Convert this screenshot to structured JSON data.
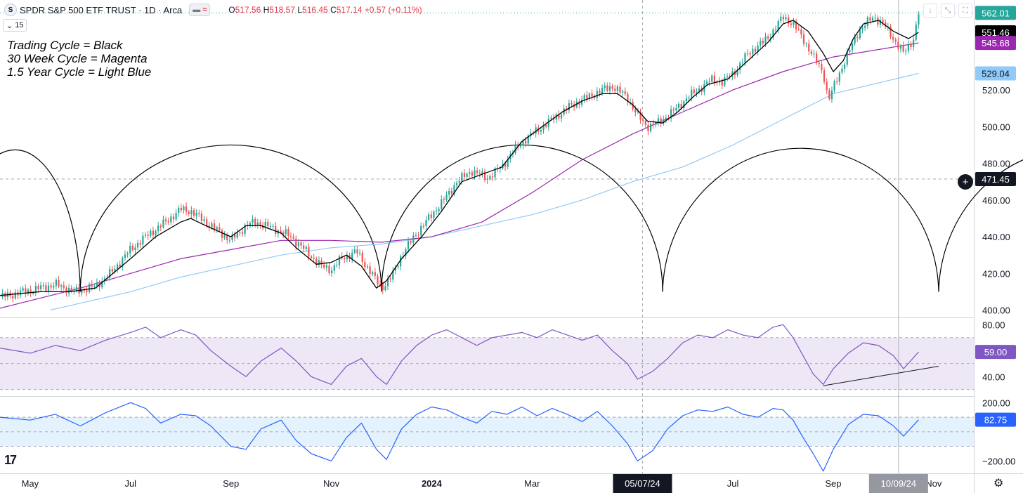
{
  "header": {
    "symbol_icon": "S",
    "title": "SPDR S&P 500 ETF TRUST · 1D · Arca",
    "pill_icons": [
      "bars-icon",
      "approx-icon"
    ],
    "ohlc": {
      "o_label": "O",
      "o": "517.56",
      "h_label": "H",
      "h": "518.57",
      "l_label": "L",
      "l": "516.45",
      "c_label": "C",
      "c": "517.14",
      "change": "+0.57 (+0.11%)"
    },
    "interval_value": "15"
  },
  "toolbar": [
    "arrow-down-icon",
    "collapse-icon",
    "expand-icon"
  ],
  "notes": [
    "Trading Cycle = Black",
    "30 Week Cycle = Magenta",
    "1.5 Year Cycle = Light Blue"
  ],
  "price_tags": [
    {
      "value": "562.01",
      "bg": "#26a69a",
      "fg": "#ffffff",
      "y": 562.01
    },
    {
      "value": "551.46",
      "bg": "#000000",
      "fg": "#ffffff",
      "y": 551.46
    },
    {
      "value": "545.68",
      "bg": "#9c27b0",
      "fg": "#ffffff",
      "y": 545.68
    },
    {
      "value": "529.04",
      "bg": "#90caf9",
      "fg": "#131722",
      "y": 529.04
    },
    {
      "value": "471.45",
      "bg": "#131722",
      "fg": "#ffffff",
      "y": 471.45
    }
  ],
  "rsi_tag": {
    "value": "59.00",
    "bg": "#7e57c2",
    "fg": "#ffffff"
  },
  "cci_tag": {
    "value": "82.75",
    "bg": "#2962ff",
    "fg": "#ffffff"
  },
  "time_tags": [
    {
      "label": "05/07/24",
      "bg": "#131722",
      "month": 12.2
    },
    {
      "label": "10/09/24",
      "bg": "#9598a1",
      "month": 17.3
    }
  ],
  "colors": {
    "up": "#26a69a",
    "down": "#ef5350",
    "trading_cycle": "#000000",
    "cycle_30w": "#9c27b0",
    "cycle_15y": "#90caf9",
    "rsi": "#7e57c2",
    "rsi_band": "#ede7f6",
    "cci": "#2962ff",
    "cci_band": "#e3f2fd"
  },
  "chart_data": [
    {
      "type": "candlestick",
      "title": "SPDR S&P 500 ETF TRUST · 1D · Arca",
      "yticks": [
        400,
        420,
        440,
        460,
        480,
        500,
        520
      ],
      "ytick_labels": [
        "400.00",
        "420.00",
        "440.00",
        "460.00",
        "480.00",
        "500.00",
        "520.00"
      ],
      "ylim": [
        396,
        566
      ],
      "x_ticks": [
        {
          "label": "May",
          "month": 0
        },
        {
          "label": "Jul",
          "month": 2
        },
        {
          "label": "Sep",
          "month": 4
        },
        {
          "label": "Nov",
          "month": 6
        },
        {
          "label": "2024",
          "month": 8
        },
        {
          "label": "Mar",
          "month": 10
        },
        {
          "label": "Jul",
          "month": 14
        },
        {
          "label": "Sep",
          "month": 16
        },
        {
          "label": "Nov",
          "month": 18
        }
      ],
      "xlim": [
        -0.6,
        18.8
      ],
      "close_path": [
        [
          -0.6,
          407
        ],
        [
          0.2,
          412
        ],
        [
          0.5,
          414
        ],
        [
          0.9,
          410
        ],
        [
          1.3,
          413
        ],
        [
          1.6,
          420
        ],
        [
          2.0,
          433
        ],
        [
          2.3,
          440
        ],
        [
          2.7,
          448
        ],
        [
          3.0,
          455
        ],
        [
          3.2,
          454
        ],
        [
          3.5,
          448
        ],
        [
          3.8,
          442
        ],
        [
          4.0,
          438
        ],
        [
          4.3,
          446
        ],
        [
          4.5,
          448
        ],
        [
          4.9,
          444
        ],
        [
          5.2,
          440
        ],
        [
          5.5,
          432
        ],
        [
          5.8,
          424
        ],
        [
          6.0,
          422
        ],
        [
          6.2,
          428
        ],
        [
          6.5,
          432
        ],
        [
          6.8,
          420
        ],
        [
          7.0,
          412
        ],
        [
          7.2,
          418
        ],
        [
          7.4,
          430
        ],
        [
          7.7,
          442
        ],
        [
          8.0,
          452
        ],
        [
          8.3,
          462
        ],
        [
          8.5,
          470
        ],
        [
          8.8,
          476
        ],
        [
          9.1,
          472
        ],
        [
          9.4,
          478
        ],
        [
          9.6,
          486
        ],
        [
          9.9,
          494
        ],
        [
          10.2,
          500
        ],
        [
          10.5,
          506
        ],
        [
          10.8,
          512
        ],
        [
          11.1,
          516
        ],
        [
          11.4,
          520
        ],
        [
          11.6,
          522
        ],
        [
          11.9,
          516
        ],
        [
          12.1,
          506
        ],
        [
          12.3,
          500
        ],
        [
          12.5,
          502
        ],
        [
          12.8,
          508
        ],
        [
          13.1,
          516
        ],
        [
          13.4,
          522
        ],
        [
          13.6,
          526
        ],
        [
          13.8,
          524
        ],
        [
          14.1,
          532
        ],
        [
          14.3,
          540
        ],
        [
          14.6,
          546
        ],
        [
          14.8,
          552
        ],
        [
          15.0,
          560
        ],
        [
          15.2,
          556
        ],
        [
          15.4,
          548
        ],
        [
          15.6,
          538
        ],
        [
          15.8,
          530
        ],
        [
          15.9,
          514
        ],
        [
          16.1,
          528
        ],
        [
          16.3,
          540
        ],
        [
          16.5,
          552
        ],
        [
          16.8,
          560
        ],
        [
          17.0,
          556
        ],
        [
          17.2,
          548
        ],
        [
          17.4,
          540
        ],
        [
          17.6,
          548
        ],
        [
          17.7,
          562
        ]
      ],
      "trading_cycle_line": [
        [
          -0.6,
          408
        ],
        [
          0.2,
          410
        ],
        [
          0.8,
          410
        ],
        [
          1.3,
          412
        ],
        [
          2.0,
          428
        ],
        [
          2.5,
          440
        ],
        [
          3.0,
          448
        ],
        [
          3.2,
          450
        ],
        [
          3.5,
          446
        ],
        [
          4.0,
          440
        ],
        [
          4.3,
          446
        ],
        [
          4.6,
          446
        ],
        [
          5.0,
          442
        ],
        [
          5.3,
          434
        ],
        [
          5.7,
          425
        ],
        [
          6.0,
          426
        ],
        [
          6.3,
          430
        ],
        [
          6.6,
          424
        ],
        [
          6.9,
          412
        ],
        [
          7.1,
          416
        ],
        [
          7.4,
          428
        ],
        [
          7.8,
          440
        ],
        [
          8.2,
          454
        ],
        [
          8.6,
          470
        ],
        [
          9.0,
          474
        ],
        [
          9.4,
          478
        ],
        [
          9.8,
          492
        ],
        [
          10.2,
          500
        ],
        [
          10.6,
          508
        ],
        [
          11.0,
          514
        ],
        [
          11.4,
          518
        ],
        [
          11.7,
          518
        ],
        [
          12.0,
          512
        ],
        [
          12.3,
          503
        ],
        [
          12.6,
          502
        ],
        [
          12.9,
          508
        ],
        [
          13.2,
          516
        ],
        [
          13.5,
          523
        ],
        [
          13.9,
          526
        ],
        [
          14.3,
          536
        ],
        [
          14.7,
          546
        ],
        [
          15.0,
          556
        ],
        [
          15.2,
          558
        ],
        [
          15.5,
          552
        ],
        [
          15.8,
          540
        ],
        [
          16.0,
          530
        ],
        [
          16.2,
          536
        ],
        [
          16.4,
          548
        ],
        [
          16.6,
          556
        ],
        [
          16.9,
          558
        ],
        [
          17.2,
          552
        ],
        [
          17.5,
          548
        ],
        [
          17.7,
          551.46
        ]
      ],
      "cycle_30w_line": [
        [
          -0.6,
          401
        ],
        [
          1,
          412
        ],
        [
          2,
          420
        ],
        [
          3,
          428
        ],
        [
          4,
          433
        ],
        [
          5,
          438
        ],
        [
          6,
          438
        ],
        [
          7,
          437
        ],
        [
          8,
          440
        ],
        [
          9,
          448
        ],
        [
          10,
          464
        ],
        [
          11,
          482
        ],
        [
          12,
          496
        ],
        [
          13,
          508
        ],
        [
          14,
          520
        ],
        [
          15,
          530
        ],
        [
          16,
          538
        ],
        [
          17.7,
          545.68
        ]
      ],
      "cycle_15y_line": [
        [
          0.4,
          400
        ],
        [
          2,
          410
        ],
        [
          3,
          418
        ],
        [
          4,
          424
        ],
        [
          5,
          430
        ],
        [
          6,
          434
        ],
        [
          7,
          436
        ],
        [
          8,
          440
        ],
        [
          9,
          446
        ],
        [
          10,
          452
        ],
        [
          11,
          460
        ],
        [
          12,
          470
        ],
        [
          13,
          478
        ],
        [
          14,
          490
        ],
        [
          15,
          504
        ],
        [
          16,
          518
        ],
        [
          17.7,
          529.04
        ]
      ],
      "cycle_arcs": [
        {
          "start_month": -1.6,
          "end_month": 1.0,
          "peak": 490,
          "trough": 410
        },
        {
          "start_month": 1.0,
          "end_month": 7.0,
          "peak": 490,
          "trough": 410
        },
        {
          "start_month": 7.0,
          "end_month": 12.6,
          "peak": 490,
          "trough": 410
        },
        {
          "start_month": 12.6,
          "end_month": 18.1,
          "peak": 490,
          "trough": 410
        },
        {
          "start_month": 18.1,
          "end_month": 23.6,
          "peak": 490,
          "trough": 410
        }
      ],
      "crosshair_price": 471.45,
      "crosshair_month": 12.2,
      "cursor_month": 17.3
    },
    {
      "type": "line",
      "title": "RSI",
      "yticks": [
        40,
        80
      ],
      "ytick_labels": [
        "40.00",
        "80.00"
      ],
      "ylim": [
        25,
        85
      ],
      "band": [
        30,
        70
      ],
      "midline": 50,
      "last_value": 59.0,
      "series_path": [
        [
          -0.6,
          62
        ],
        [
          0,
          58
        ],
        [
          0.5,
          64
        ],
        [
          1.0,
          60
        ],
        [
          1.5,
          68
        ],
        [
          2.0,
          74
        ],
        [
          2.3,
          78
        ],
        [
          2.6,
          70
        ],
        [
          3.0,
          76
        ],
        [
          3.3,
          72
        ],
        [
          3.6,
          60
        ],
        [
          4.0,
          48
        ],
        [
          4.3,
          40
        ],
        [
          4.6,
          52
        ],
        [
          5.0,
          62
        ],
        [
          5.3,
          52
        ],
        [
          5.6,
          40
        ],
        [
          6.0,
          34
        ],
        [
          6.3,
          48
        ],
        [
          6.6,
          54
        ],
        [
          6.9,
          40
        ],
        [
          7.1,
          34
        ],
        [
          7.4,
          52
        ],
        [
          7.7,
          64
        ],
        [
          8.0,
          72
        ],
        [
          8.3,
          76
        ],
        [
          8.6,
          70
        ],
        [
          8.9,
          64
        ],
        [
          9.2,
          70
        ],
        [
          9.5,
          72
        ],
        [
          9.8,
          74
        ],
        [
          10.1,
          70
        ],
        [
          10.4,
          76
        ],
        [
          10.7,
          72
        ],
        [
          11.0,
          68
        ],
        [
          11.3,
          72
        ],
        [
          11.6,
          60
        ],
        [
          11.9,
          50
        ],
        [
          12.1,
          38
        ],
        [
          12.4,
          44
        ],
        [
          12.7,
          54
        ],
        [
          13.0,
          66
        ],
        [
          13.3,
          72
        ],
        [
          13.6,
          70
        ],
        [
          13.9,
          76
        ],
        [
          14.2,
          72
        ],
        [
          14.5,
          70
        ],
        [
          14.8,
          78
        ],
        [
          15.0,
          80
        ],
        [
          15.2,
          70
        ],
        [
          15.4,
          56
        ],
        [
          15.6,
          42
        ],
        [
          15.8,
          34
        ],
        [
          16.0,
          46
        ],
        [
          16.3,
          58
        ],
        [
          16.6,
          66
        ],
        [
          16.9,
          64
        ],
        [
          17.2,
          56
        ],
        [
          17.4,
          46
        ],
        [
          17.7,
          59
        ]
      ],
      "trendline": [
        [
          15.8,
          33
        ],
        [
          18.1,
          48
        ]
      ]
    },
    {
      "type": "line",
      "title": "CCI",
      "yticks": [
        200,
        -200
      ],
      "ytick_labels": [
        "200.00",
        "−200.00"
      ],
      "ylim": [
        -280,
        240
      ],
      "band": [
        -100,
        100
      ],
      "midline": 0,
      "last_value": 82.75,
      "series_path": [
        [
          -0.6,
          100
        ],
        [
          0,
          80
        ],
        [
          0.5,
          120
        ],
        [
          1.0,
          40
        ],
        [
          1.5,
          130
        ],
        [
          2.0,
          200
        ],
        [
          2.3,
          160
        ],
        [
          2.6,
          60
        ],
        [
          3.0,
          120
        ],
        [
          3.3,
          110
        ],
        [
          3.6,
          40
        ],
        [
          4.0,
          -100
        ],
        [
          4.3,
          -120
        ],
        [
          4.6,
          20
        ],
        [
          5.0,
          80
        ],
        [
          5.3,
          -60
        ],
        [
          5.6,
          -150
        ],
        [
          6.0,
          -200
        ],
        [
          6.3,
          -40
        ],
        [
          6.6,
          60
        ],
        [
          6.9,
          -120
        ],
        [
          7.1,
          -190
        ],
        [
          7.4,
          20
        ],
        [
          7.7,
          120
        ],
        [
          8.0,
          170
        ],
        [
          8.3,
          150
        ],
        [
          8.6,
          100
        ],
        [
          8.9,
          60
        ],
        [
          9.2,
          140
        ],
        [
          9.5,
          120
        ],
        [
          9.8,
          170
        ],
        [
          10.1,
          110
        ],
        [
          10.4,
          160
        ],
        [
          10.7,
          120
        ],
        [
          11.0,
          70
        ],
        [
          11.3,
          140
        ],
        [
          11.6,
          40
        ],
        [
          11.9,
          -80
        ],
        [
          12.1,
          -200
        ],
        [
          12.4,
          -130
        ],
        [
          12.7,
          20
        ],
        [
          13.0,
          110
        ],
        [
          13.3,
          150
        ],
        [
          13.6,
          140
        ],
        [
          13.9,
          170
        ],
        [
          14.2,
          120
        ],
        [
          14.5,
          100
        ],
        [
          14.8,
          160
        ],
        [
          15.0,
          150
        ],
        [
          15.2,
          80
        ],
        [
          15.4,
          -40
        ],
        [
          15.6,
          -150
        ],
        [
          15.8,
          -270
        ],
        [
          16.0,
          -120
        ],
        [
          16.3,
          50
        ],
        [
          16.6,
          120
        ],
        [
          16.9,
          110
        ],
        [
          17.2,
          40
        ],
        [
          17.4,
          -30
        ],
        [
          17.7,
          82.75
        ]
      ]
    }
  ]
}
